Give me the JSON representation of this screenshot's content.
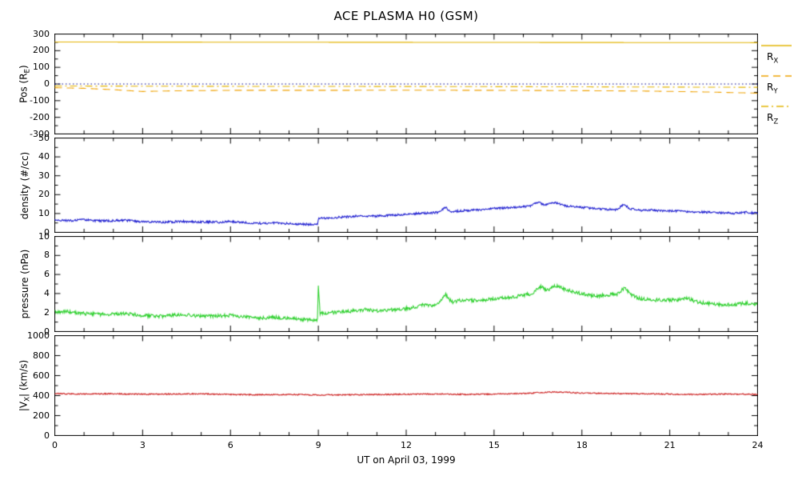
{
  "chart_data": {
    "type": "line",
    "title": "ACE PLASMA H0 (GSM)",
    "xlabel": "UT on April 03, 1999",
    "xlim": [
      0,
      24
    ],
    "xticks": [
      0,
      3,
      6,
      9,
      12,
      15,
      18,
      21,
      24
    ],
    "x_minor_step": 1,
    "axis_color": "#000000",
    "background_color": "#ffffff",
    "panels": [
      {
        "name": "position",
        "ylabel": "Pos (R_{E})",
        "ylim": [
          -300,
          300
        ],
        "yticks": [
          -300,
          -200,
          -100,
          0,
          100,
          200,
          300
        ],
        "y_minor_step": 50,
        "series": [
          {
            "name": "R_{X}",
            "color": "#e3b505",
            "style": "solid",
            "noise": 0,
            "points": [
              [
                0,
                252
              ],
              [
                6,
                251
              ],
              [
                12,
                250
              ],
              [
                18,
                249
              ],
              [
                24,
                248
              ]
            ]
          },
          {
            "name": "R_{Y}",
            "color": "#f0a202",
            "style": "dashed",
            "noise": 0,
            "points": [
              [
                0,
                -22
              ],
              [
                1,
                -26
              ],
              [
                2,
                -34
              ],
              [
                3,
                -45
              ],
              [
                4,
                -41
              ],
              [
                6,
                -38
              ],
              [
                9,
                -38
              ],
              [
                12,
                -37
              ],
              [
                15,
                -38
              ],
              [
                18,
                -40
              ],
              [
                20,
                -42
              ],
              [
                22,
                -47
              ],
              [
                24,
                -55
              ]
            ]
          },
          {
            "name": "R_{Z}",
            "color": "#e3b505",
            "style": "dashdot",
            "noise": 0,
            "points": [
              [
                0,
                -12
              ],
              [
                6,
                -14
              ],
              [
                12,
                -15
              ],
              [
                18,
                -17
              ],
              [
                24,
                -20
              ]
            ]
          },
          {
            "name": "zero-reference",
            "color": "#000090",
            "style": "dotted",
            "noise": 0,
            "points": [
              [
                0,
                0
              ],
              [
                24,
                0
              ]
            ]
          }
        ]
      },
      {
        "name": "density",
        "ylabel": "density (#/cc)",
        "ylim": [
          0,
          50
        ],
        "yticks": [
          0,
          10,
          20,
          30,
          40,
          50
        ],
        "y_minor_step": 5,
        "series": [
          {
            "name": "density",
            "color": "#1f1fd0",
            "style": "solid",
            "noise": 0.55,
            "points": [
              [
                0,
                6.6
              ],
              [
                0.3,
                6.4
              ],
              [
                0.6,
                6.2
              ],
              [
                1,
                6.8
              ],
              [
                1.3,
                6.3
              ],
              [
                1.6,
                6.1
              ],
              [
                2,
                6.2
              ],
              [
                2.4,
                6.4
              ],
              [
                2.8,
                5.9
              ],
              [
                3.2,
                5.6
              ],
              [
                3.6,
                5.4
              ],
              [
                4,
                5.6
              ],
              [
                4.4,
                5.8
              ],
              [
                4.8,
                5.5
              ],
              [
                5.2,
                5.6
              ],
              [
                5.6,
                5.4
              ],
              [
                6,
                5.8
              ],
              [
                6.4,
                5.3
              ],
              [
                6.8,
                4.9
              ],
              [
                7.2,
                4.8
              ],
              [
                7.6,
                5.0
              ],
              [
                8,
                4.6
              ],
              [
                8.4,
                4.4
              ],
              [
                8.8,
                4.2
              ],
              [
                8.97,
                4.3
              ],
              [
                9.0,
                7.4
              ],
              [
                9.3,
                7.6
              ],
              [
                9.6,
                7.9
              ],
              [
                10,
                8.3
              ],
              [
                10.4,
                8.8
              ],
              [
                10.8,
                8.5
              ],
              [
                11.2,
                8.8
              ],
              [
                11.6,
                9.2
              ],
              [
                12,
                9.6
              ],
              [
                12.4,
                10.1
              ],
              [
                12.8,
                10.3
              ],
              [
                13.1,
                10.6
              ],
              [
                13.35,
                13.4
              ],
              [
                13.5,
                10.9
              ],
              [
                13.8,
                11.3
              ],
              [
                14.2,
                11.8
              ],
              [
                14.6,
                12.1
              ],
              [
                15,
                12.6
              ],
              [
                15.4,
                13.1
              ],
              [
                15.8,
                13.3
              ],
              [
                16.2,
                13.8
              ],
              [
                16.5,
                16.2
              ],
              [
                16.7,
                14.6
              ],
              [
                16.9,
                15.4
              ],
              [
                17.1,
                15.8
              ],
              [
                17.4,
                14.2
              ],
              [
                17.7,
                13.6
              ],
              [
                18,
                13.2
              ],
              [
                18.4,
                12.7
              ],
              [
                18.8,
                12.3
              ],
              [
                19.2,
                12.1
              ],
              [
                19.45,
                15.1
              ],
              [
                19.6,
                12.7
              ],
              [
                20,
                11.6
              ],
              [
                20.4,
                11.9
              ],
              [
                20.8,
                11.2
              ],
              [
                21.2,
                11.4
              ],
              [
                21.6,
                11.0
              ],
              [
                22,
                10.9
              ],
              [
                22.4,
                10.6
              ],
              [
                22.8,
                10.4
              ],
              [
                23.2,
                10.2
              ],
              [
                23.6,
                10.6
              ],
              [
                24,
                10.1
              ]
            ]
          }
        ]
      },
      {
        "name": "pressure",
        "ylabel": "pressure (nPa)",
        "ylim": [
          0,
          10
        ],
        "yticks": [
          0,
          2,
          4,
          6,
          8,
          10
        ],
        "y_minor_step": 1,
        "series": [
          {
            "name": "pressure",
            "color": "#2fd02f",
            "style": "solid",
            "noise": 0.18,
            "points": [
              [
                0,
                2.05
              ],
              [
                0.4,
                2.1
              ],
              [
                0.8,
                1.95
              ],
              [
                1.2,
                1.85
              ],
              [
                1.6,
                1.8
              ],
              [
                2,
                1.85
              ],
              [
                2.4,
                1.9
              ],
              [
                2.8,
                1.75
              ],
              [
                3.2,
                1.65
              ],
              [
                3.6,
                1.6
              ],
              [
                4,
                1.7
              ],
              [
                4.4,
                1.8
              ],
              [
                4.8,
                1.65
              ],
              [
                5.2,
                1.6
              ],
              [
                5.6,
                1.65
              ],
              [
                6,
                1.7
              ],
              [
                6.4,
                1.55
              ],
              [
                6.8,
                1.45
              ],
              [
                7.2,
                1.45
              ],
              [
                7.6,
                1.5
              ],
              [
                8,
                1.4
              ],
              [
                8.4,
                1.3
              ],
              [
                8.8,
                1.15
              ],
              [
                8.97,
                1.2
              ],
              [
                9.0,
                4.7
              ],
              [
                9.06,
                1.9
              ],
              [
                9.4,
                2.0
              ],
              [
                9.8,
                2.05
              ],
              [
                10.2,
                2.2
              ],
              [
                10.6,
                2.3
              ],
              [
                11,
                2.2
              ],
              [
                11.4,
                2.25
              ],
              [
                11.8,
                2.35
              ],
              [
                12.2,
                2.5
              ],
              [
                12.6,
                2.8
              ],
              [
                13,
                2.7
              ],
              [
                13.35,
                3.9
              ],
              [
                13.55,
                3.1
              ],
              [
                13.9,
                3.3
              ],
              [
                14.3,
                3.25
              ],
              [
                14.7,
                3.35
              ],
              [
                15.1,
                3.5
              ],
              [
                15.5,
                3.6
              ],
              [
                15.9,
                3.75
              ],
              [
                16.3,
                4.0
              ],
              [
                16.6,
                4.7
              ],
              [
                16.85,
                4.3
              ],
              [
                17.1,
                4.85
              ],
              [
                17.35,
                4.5
              ],
              [
                17.7,
                4.2
              ],
              [
                18,
                4.0
              ],
              [
                18.4,
                3.75
              ],
              [
                18.8,
                3.8
              ],
              [
                19.2,
                3.95
              ],
              [
                19.45,
                4.6
              ],
              [
                19.7,
                3.85
              ],
              [
                20,
                3.45
              ],
              [
                20.4,
                3.3
              ],
              [
                20.8,
                3.35
              ],
              [
                21.2,
                3.3
              ],
              [
                21.6,
                3.5
              ],
              [
                22,
                3.05
              ],
              [
                22.4,
                2.95
              ],
              [
                22.8,
                2.85
              ],
              [
                23.2,
                2.8
              ],
              [
                23.6,
                3.0
              ],
              [
                24,
                2.85
              ]
            ]
          }
        ]
      },
      {
        "name": "velocity",
        "ylabel": "|V_{X}| (km/s)",
        "ylim": [
          0,
          1000
        ],
        "yticks": [
          0,
          200,
          400,
          600,
          800,
          1000
        ],
        "y_minor_step": 100,
        "series": [
          {
            "name": "|V_{X}|",
            "color": "#cc1f1f",
            "style": "solid",
            "noise": 6,
            "points": [
              [
                0,
                421
              ],
              [
                1,
                416
              ],
              [
                2,
                419
              ],
              [
                3,
                413
              ],
              [
                4,
                416
              ],
              [
                5,
                418
              ],
              [
                6,
                411
              ],
              [
                7,
                408
              ],
              [
                8,
                411
              ],
              [
                9,
                406
              ],
              [
                10,
                409
              ],
              [
                11,
                411
              ],
              [
                12,
                413
              ],
              [
                13,
                416
              ],
              [
                14,
                412
              ],
              [
                15,
                416
              ],
              [
                16,
                421
              ],
              [
                16.8,
                433
              ],
              [
                17.2,
                436
              ],
              [
                18,
                426
              ],
              [
                19,
                421
              ],
              [
                20,
                418
              ],
              [
                21,
                415
              ],
              [
                22,
                412
              ],
              [
                23,
                416
              ],
              [
                24,
                412
              ]
            ]
          }
        ]
      }
    ],
    "legend": [
      {
        "label": "R_{X}",
        "style": "solid",
        "color": "#e3b505"
      },
      {
        "label": "R_{Y}",
        "style": "dashed",
        "color": "#f0a202"
      },
      {
        "label": "R_{Z}",
        "style": "dashdot",
        "color": "#e3b505"
      }
    ]
  }
}
